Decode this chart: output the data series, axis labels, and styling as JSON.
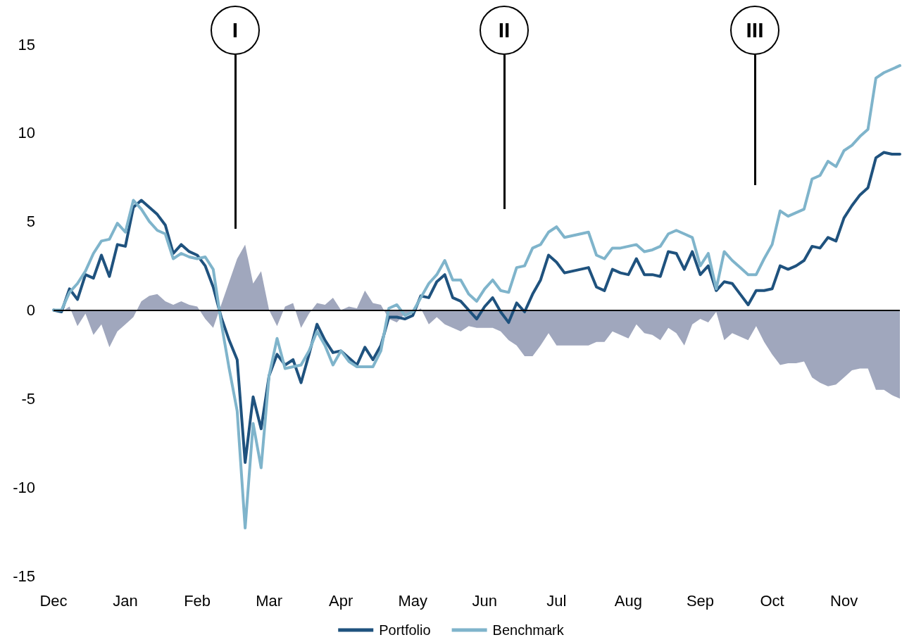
{
  "chart_data": {
    "type": "line",
    "categories": [
      "Dec",
      null,
      null,
      null,
      null,
      null,
      null,
      null,
      null,
      "Jan",
      null,
      null,
      null,
      null,
      null,
      null,
      null,
      null,
      "Feb",
      null,
      null,
      null,
      null,
      null,
      null,
      null,
      null,
      "Mar",
      null,
      null,
      null,
      null,
      null,
      null,
      null,
      null,
      "Apr",
      null,
      null,
      null,
      null,
      null,
      null,
      null,
      null,
      "May",
      null,
      null,
      null,
      null,
      null,
      null,
      null,
      null,
      "Jun",
      null,
      null,
      null,
      null,
      null,
      null,
      null,
      null,
      "Jul",
      null,
      null,
      null,
      null,
      null,
      null,
      null,
      null,
      "Aug",
      null,
      null,
      null,
      null,
      null,
      null,
      null,
      null,
      "Sep",
      null,
      null,
      null,
      null,
      null,
      null,
      null,
      null,
      "Oct",
      null,
      null,
      null,
      null,
      null,
      null,
      null,
      null,
      "Nov",
      null,
      null,
      null,
      null,
      null,
      null,
      null
    ],
    "series": [
      {
        "type": "area",
        "color": "#a0a7bd",
        "values": [
          0,
          -0.1,
          0.2,
          -0.9,
          -0.2,
          -1.4,
          -0.8,
          -2.1,
          -1.2,
          -0.8,
          -0.4,
          0.5,
          0.8,
          0.9,
          0.5,
          0.3,
          0.5,
          0.3,
          0.2,
          -0.5,
          -1,
          0.3,
          1.6,
          2.9,
          3.7,
          1.5,
          2.2,
          0,
          -0.9,
          0.2,
          0.4,
          -1,
          -0.2,
          0.4,
          0.3,
          0.7,
          0,
          0.2,
          0.1,
          1.1,
          0.4,
          0.3,
          -0.5,
          -0.7,
          -0.2,
          -0.2,
          0.1,
          -0.8,
          -0.4,
          -0.8,
          -1,
          -1.2,
          -0.9,
          -1,
          -1,
          -1,
          -1.2,
          -1.7,
          -2,
          -2.6,
          -2.6,
          -2,
          -1.3,
          -2,
          -2,
          -2,
          -2,
          -2,
          -1.8,
          -1.8,
          -1.2,
          -1.4,
          -1.6,
          -0.8,
          -1.3,
          -1.4,
          -1.7,
          -1,
          -1.3,
          -2,
          -0.8,
          -0.5,
          -0.7,
          -0.1,
          -1.7,
          -1.3,
          -1.5,
          -1.7,
          -0.9,
          -1.8,
          -2.5,
          -3.1,
          -3,
          -3,
          -2.9,
          -3.8,
          -4.1,
          -4.3,
          -4.2,
          -3.8,
          -3.4,
          -3.3,
          -3.3,
          -4.5,
          -4.5,
          -4.8,
          -5
        ]
      },
      {
        "name": "Portfolio",
        "color": "#1f527e",
        "values": [
          0,
          -0.1,
          1.2,
          0.6,
          2,
          1.8,
          3.1,
          1.9,
          3.7,
          3.6,
          5.8,
          6.2,
          5.8,
          5.4,
          4.8,
          3.2,
          3.7,
          3.3,
          3.1,
          2.5,
          1.3,
          -0.4,
          -1.7,
          -2.8,
          -8.6,
          -4.9,
          -6.7,
          -3.7,
          -2.5,
          -3.1,
          -2.8,
          -4.1,
          -2.5,
          -0.8,
          -1.7,
          -2.4,
          -2.3,
          -2.7,
          -3.1,
          -2.1,
          -2.8,
          -2,
          -0.4,
          -0.4,
          -0.5,
          -0.3,
          0.8,
          0.7,
          1.6,
          2,
          0.7,
          0.5,
          0,
          -0.5,
          0.2,
          0.7,
          -0.1,
          -0.7,
          0.4,
          -0.1,
          0.9,
          1.7,
          3.1,
          2.7,
          2.1,
          2.2,
          2.3,
          2.4,
          1.3,
          1.1,
          2.3,
          2.1,
          2,
          2.9,
          2,
          2,
          1.9,
          3.3,
          3.2,
          2.3,
          3.3,
          2,
          2.5,
          1.1,
          1.6,
          1.5,
          0.9,
          0.3,
          1.1,
          1.1,
          1.2,
          2.5,
          2.3,
          2.5,
          2.8,
          3.6,
          3.5,
          4.1,
          3.9,
          5.2,
          5.9,
          6.5,
          6.9,
          8.6,
          8.9,
          8.8,
          8.8
        ]
      },
      {
        "name": "Benchmark",
        "color": "#7fb4cb",
        "values": [
          0,
          0,
          1,
          1.5,
          2.2,
          3.2,
          3.9,
          4,
          4.9,
          4.4,
          6.2,
          5.7,
          5,
          4.5,
          4.3,
          2.9,
          3.2,
          3,
          2.9,
          3,
          2.3,
          -0.7,
          -3.3,
          -5.7,
          -12.3,
          -6.4,
          -8.9,
          -3.7,
          -1.6,
          -3.3,
          -3.2,
          -3.1,
          -2.3,
          -1.2,
          -2,
          -3.1,
          -2.3,
          -2.9,
          -3.2,
          -3.2,
          -3.2,
          -2.3,
          0.1,
          0.3,
          -0.3,
          -0.1,
          0.7,
          1.5,
          2,
          2.8,
          1.7,
          1.7,
          0.9,
          0.5,
          1.2,
          1.7,
          1.1,
          1,
          2.4,
          2.5,
          3.5,
          3.7,
          4.4,
          4.7,
          4.1,
          4.2,
          4.3,
          4.4,
          3.1,
          2.9,
          3.5,
          3.5,
          3.6,
          3.7,
          3.3,
          3.4,
          3.6,
          4.3,
          4.5,
          4.3,
          4.1,
          2.5,
          3.2,
          1.2,
          3.3,
          2.8,
          2.4,
          2,
          2,
          2.9,
          3.7,
          5.6,
          5.3,
          5.5,
          5.7,
          7.4,
          7.6,
          8.4,
          8.1,
          9,
          9.3,
          9.8,
          10.2,
          13.1,
          13.4,
          13.6,
          13.8
        ]
      }
    ],
    "ylim": [
      -15,
      15
    ],
    "yticks": [
      -15,
      -10,
      -5,
      0,
      5,
      10,
      15
    ],
    "ref_lines": [
      {
        "axis": "y",
        "value": 0,
        "color": "#000000"
      }
    ],
    "annotations": [
      "I",
      "II",
      "III"
    ],
    "legend": "bottom",
    "marker": "none",
    "grid": false
  }
}
